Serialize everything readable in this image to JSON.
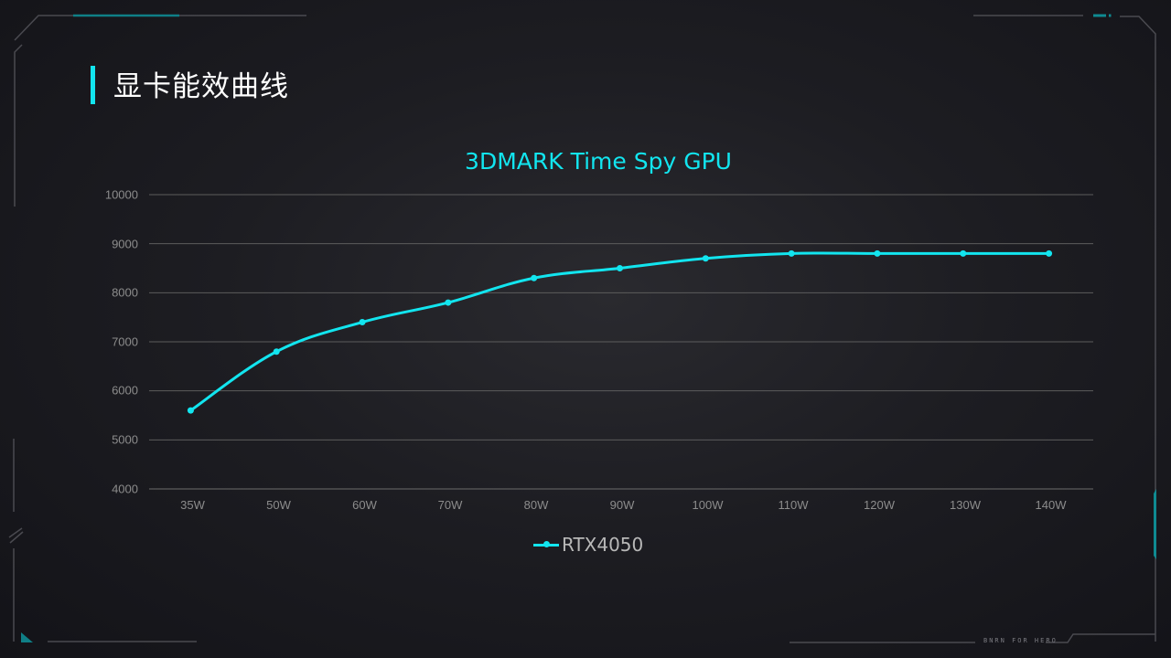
{
  "page": {
    "title": "显卡能效曲线",
    "footer_brand": "BNRN FOR HERO"
  },
  "colors": {
    "accent": "#12e5ef",
    "accent_dark": "#0f8a91",
    "frame_line": "#4a4a50",
    "gridline": "#5c5c5c",
    "tick_label": "#8c8c8c",
    "background": "#1d1d22"
  },
  "chart_data": {
    "type": "line",
    "title": "3DMARK Time Spy GPU",
    "xlabel": "",
    "ylabel": "",
    "categories": [
      "35W",
      "50W",
      "60W",
      "70W",
      "80W",
      "90W",
      "100W",
      "110W",
      "120W",
      "130W",
      "140W"
    ],
    "series": [
      {
        "name": "RTX4050",
        "color": "#12e5ef",
        "smooth": true,
        "markers": true,
        "values": [
          5600,
          6800,
          7400,
          7800,
          8300,
          8500,
          8700,
          8800,
          8800,
          8800,
          8800
        ]
      }
    ],
    "ylim": [
      4000,
      10000
    ],
    "yticks": [
      10000,
      9000,
      8000,
      7000,
      6000,
      5000,
      4000
    ],
    "grid": "horizontal",
    "legend_position": "bottom"
  }
}
